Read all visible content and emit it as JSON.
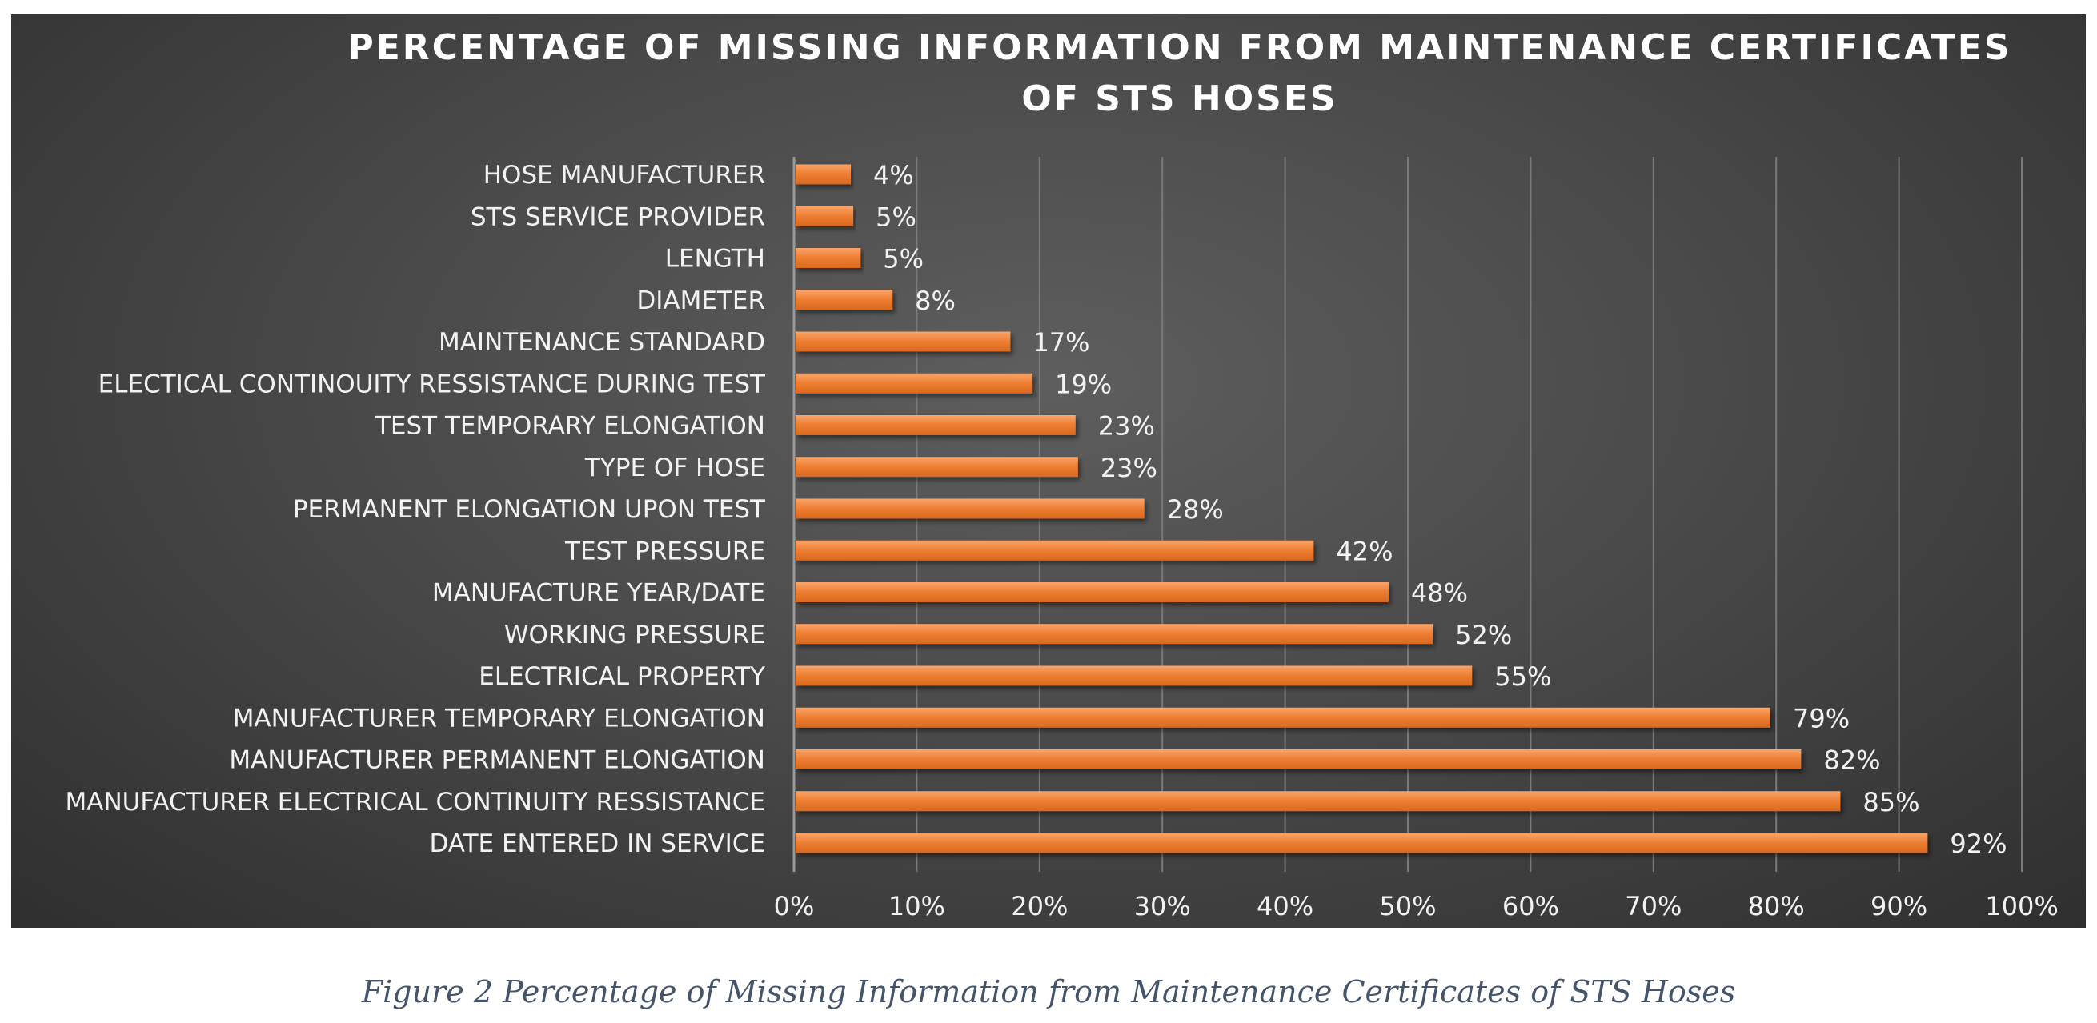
{
  "chart_data": {
    "type": "bar",
    "orientation": "horizontal",
    "title": "PERCENTAGE OF MISSING INFORMATION FROM MAINTENANCE CERTIFICATES OF STS HOSES",
    "title_lines": [
      "PERCENTAGE OF MISSING INFORMATION FROM MAINTENANCE CERTIFICATES",
      "OF STS HOSES"
    ],
    "categories": [
      "HOSE MANUFACTURER",
      "STS SERVICE PROVIDER",
      "LENGTH",
      "DIAMETER",
      "MAINTENANCE STANDARD",
      "ELECTICAL CONTINOUITY RESSISTANCE DURING TEST",
      "TEST TEMPORARY ELONGATION",
      "TYPE OF HOSE",
      "PERMANENT ELONGATION UPON TEST",
      "TEST PRESSURE",
      "MANUFACTURE YEAR/DATE",
      "WORKING PRESSURE",
      "ELECTRICAL PROPERTY",
      "MANUFACTURER TEMPORARY ELONGATION",
      "MANUFACTURER PERMANENT ELONGATION",
      "MANUFACTURER ELECTRICAL CONTINUITY RESSISTANCE",
      "DATE ENTERED IN SERVICE"
    ],
    "values": [
      4.5,
      4.7,
      5.3,
      7.9,
      17.5,
      19.3,
      22.8,
      23.0,
      28.4,
      42.2,
      48.3,
      51.9,
      55.1,
      79.4,
      81.9,
      85.1,
      92.2
    ],
    "value_labels": [
      "4%",
      "5%",
      "5%",
      "8%",
      "17%",
      "19%",
      "23%",
      "23%",
      "28%",
      "42%",
      "48%",
      "52%",
      "55%",
      "79%",
      "82%",
      "85%",
      "92%"
    ],
    "xlim": [
      0,
      100
    ],
    "x_ticks": [
      "0%",
      "10%",
      "20%",
      "30%",
      "40%",
      "50%",
      "60%",
      "70%",
      "80%",
      "90%",
      "100%"
    ],
    "grid": "vertical",
    "legend": "none",
    "colors": {
      "bar": "#ed7d31",
      "bar_highlight": "#f79a5a",
      "background": "#4a4a4a",
      "grid": "#7a7a7a",
      "text": "#f2f2f2"
    }
  },
  "caption": "Figure 2 Percentage of Missing Information from Maintenance Certificates of STS Hoses"
}
